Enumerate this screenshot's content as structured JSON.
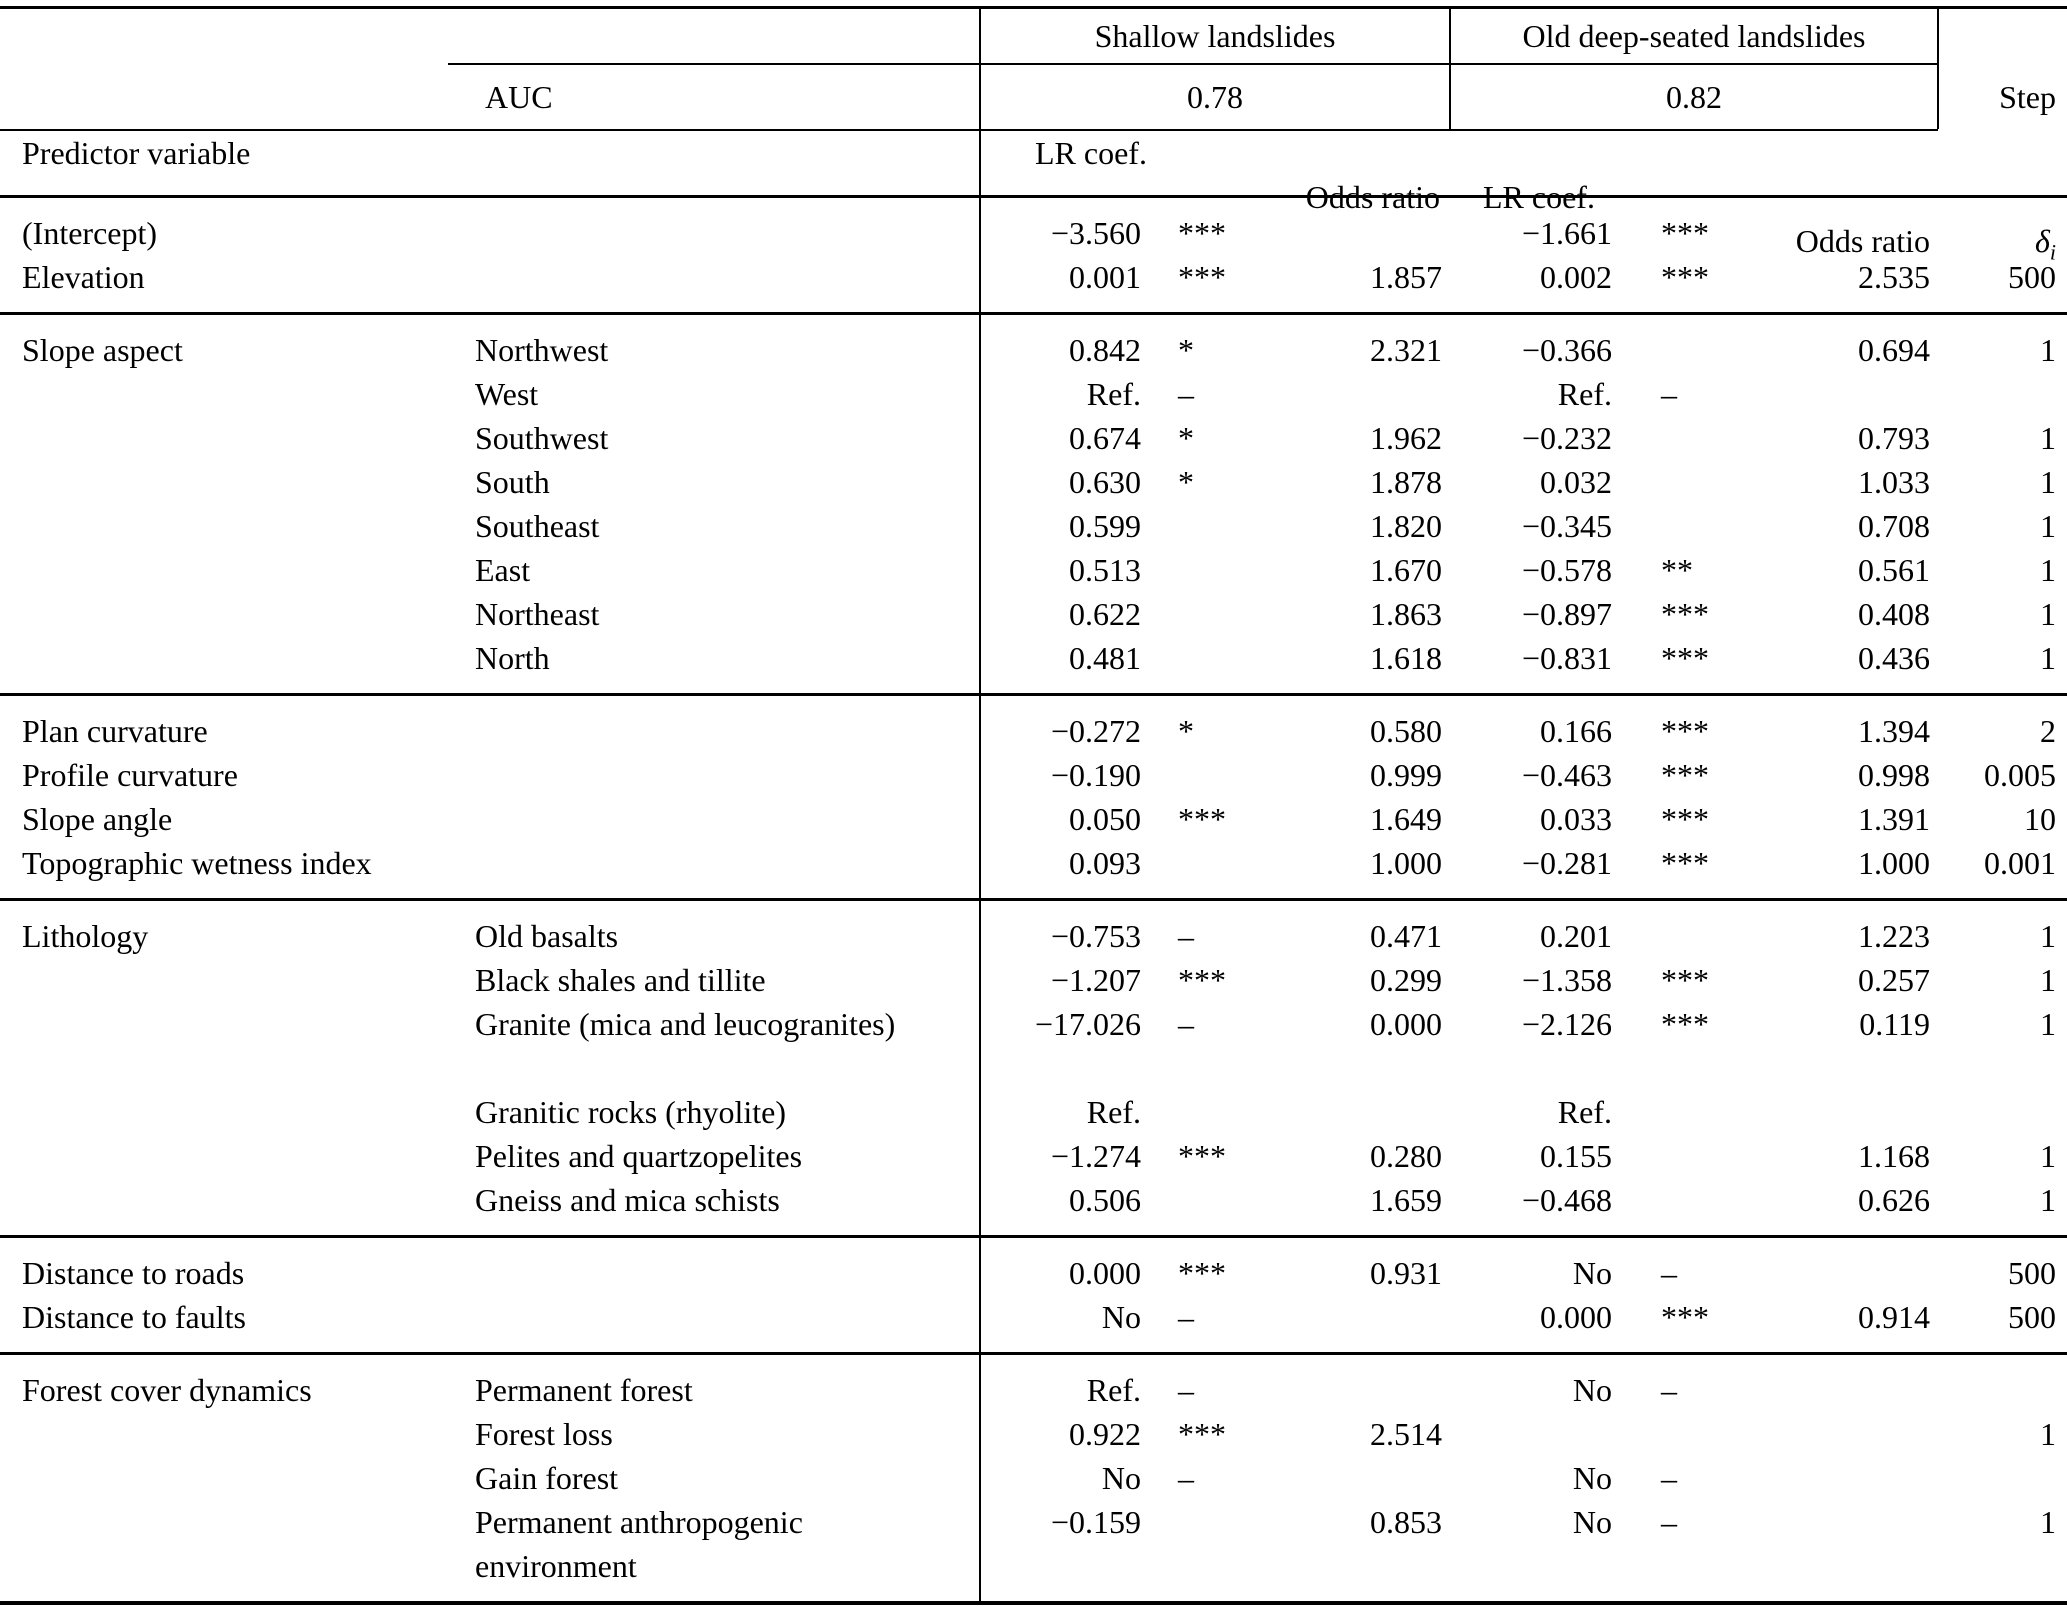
{
  "table": {
    "header": {
      "group_shallow": "Shallow landslides",
      "group_deep": "Old deep-seated landslides",
      "auc_label": "AUC",
      "auc_shallow": "0.78",
      "auc_deep": "0.82",
      "step_label": "Step",
      "predictor_label": "Predictor variable",
      "lr_coef_shallow": "LR coef.",
      "odds_ratio_shallow": "Odds ratio",
      "lr_coef_deep": "LR coef.",
      "odds_ratio_deep": "Odds ratio",
      "delta_symbol": "δ",
      "delta_subscript": "i"
    },
    "sections": [
      {
        "name": "intercept-elevation",
        "rows": [
          {
            "predictor": "(Intercept)",
            "category": "",
            "lr1": "−3.560",
            "sig1": "***",
            "odds1": "",
            "lr2": "−1.661",
            "sig2": "***",
            "odds2": "",
            "step": ""
          },
          {
            "predictor": "Elevation",
            "category": "",
            "lr1": "0.001",
            "sig1": "***",
            "odds1": "1.857",
            "lr2": "0.002",
            "sig2": "***",
            "odds2": "2.535",
            "step": "500"
          }
        ]
      },
      {
        "name": "slope-aspect",
        "rows": [
          {
            "predictor": "Slope aspect",
            "category": "Northwest",
            "lr1": "0.842",
            "sig1": "*",
            "odds1": "2.321",
            "lr2": "−0.366",
            "sig2": "",
            "odds2": "0.694",
            "step": "1"
          },
          {
            "predictor": "",
            "category": "West",
            "lr1": "Ref.",
            "sig1": "–",
            "odds1": "",
            "lr2": "Ref.",
            "sig2": "–",
            "odds2": "",
            "step": ""
          },
          {
            "predictor": "",
            "category": "Southwest",
            "lr1": "0.674",
            "sig1": "*",
            "odds1": "1.962",
            "lr2": "−0.232",
            "sig2": "",
            "odds2": "0.793",
            "step": "1"
          },
          {
            "predictor": "",
            "category": "South",
            "lr1": "0.630",
            "sig1": "*",
            "odds1": "1.878",
            "lr2": "0.032",
            "sig2": "",
            "odds2": "1.033",
            "step": "1"
          },
          {
            "predictor": "",
            "category": "Southeast",
            "lr1": "0.599",
            "sig1": "",
            "odds1": "1.820",
            "lr2": "−0.345",
            "sig2": "",
            "odds2": "0.708",
            "step": "1"
          },
          {
            "predictor": "",
            "category": "East",
            "lr1": "0.513",
            "sig1": "",
            "odds1": "1.670",
            "lr2": "−0.578",
            "sig2": "**",
            "odds2": "0.561",
            "step": "1"
          },
          {
            "predictor": "",
            "category": "Northeast",
            "lr1": "0.622",
            "sig1": "",
            "odds1": "1.863",
            "lr2": "−0.897",
            "sig2": "***",
            "odds2": "0.408",
            "step": "1"
          },
          {
            "predictor": "",
            "category": "North",
            "lr1": "0.481",
            "sig1": "",
            "odds1": "1.618",
            "lr2": "−0.831",
            "sig2": "***",
            "odds2": "0.436",
            "step": "1"
          }
        ]
      },
      {
        "name": "terrain-indices",
        "rows": [
          {
            "predictor": "Plan curvature",
            "category": "",
            "lr1": "−0.272",
            "sig1": "*",
            "odds1": "0.580",
            "lr2": "0.166",
            "sig2": "***",
            "odds2": "1.394",
            "step": "2"
          },
          {
            "predictor": "Profile curvature",
            "category": "",
            "lr1": "−0.190",
            "sig1": "",
            "odds1": "0.999",
            "lr2": "−0.463",
            "sig2": "***",
            "odds2": "0.998",
            "step": "0.005"
          },
          {
            "predictor": "Slope angle",
            "category": "",
            "lr1": "0.050",
            "sig1": "***",
            "odds1": "1.649",
            "lr2": "0.033",
            "sig2": "***",
            "odds2": "1.391",
            "step": "10"
          },
          {
            "predictor": "Topographic wetness index",
            "category": "",
            "lr1": "0.093",
            "sig1": "",
            "odds1": "1.000",
            "lr2": "−0.281",
            "sig2": "***",
            "odds2": "1.000",
            "step": "0.001"
          }
        ]
      },
      {
        "name": "lithology",
        "rows": [
          {
            "predictor": "Lithology",
            "category": "Old basalts",
            "lr1": "−0.753",
            "sig1": "–",
            "odds1": "0.471",
            "lr2": "0.201",
            "sig2": "",
            "odds2": "1.223",
            "step": "1"
          },
          {
            "predictor": "",
            "category": "Black shales and tillite",
            "lr1": "−1.207",
            "sig1": "***",
            "odds1": "0.299",
            "lr2": "−1.358",
            "sig2": "***",
            "odds2": "0.257",
            "step": "1"
          },
          {
            "predictor": "",
            "category": "Granite (mica and leucogranites)",
            "lr1": "−17.026",
            "sig1": "–",
            "odds1": "0.000",
            "lr2": "−2.126",
            "sig2": "***",
            "odds2": "0.119",
            "step": "1"
          },
          {
            "predictor": "",
            "category": "",
            "lr1": "",
            "sig1": "",
            "odds1": "",
            "lr2": "",
            "sig2": "",
            "odds2": "",
            "step": ""
          },
          {
            "predictor": "",
            "category": "Granitic rocks (rhyolite)",
            "lr1": "Ref.",
            "sig1": "",
            "odds1": "",
            "lr2": "Ref.",
            "sig2": "",
            "odds2": "",
            "step": ""
          },
          {
            "predictor": "",
            "category": "Pelites and quartzopelites",
            "lr1": "−1.274",
            "sig1": "***",
            "odds1": "0.280",
            "lr2": "0.155",
            "sig2": "",
            "odds2": "1.168",
            "step": "1"
          },
          {
            "predictor": "",
            "category": "Gneiss and mica schists",
            "lr1": "0.506",
            "sig1": "",
            "odds1": "1.659",
            "lr2": "−0.468",
            "sig2": "",
            "odds2": "0.626",
            "step": "1"
          }
        ]
      },
      {
        "name": "distances",
        "rows": [
          {
            "predictor": "Distance to roads",
            "category": "",
            "lr1": "0.000",
            "sig1": "***",
            "odds1": "0.931",
            "lr2": "No",
            "sig2": "–",
            "odds2": "",
            "step": "500"
          },
          {
            "predictor": "Distance to faults",
            "category": "",
            "lr1": "No",
            "sig1": "–",
            "odds1": "",
            "lr2": "0.000",
            "sig2": "***",
            "odds2": "0.914",
            "step": "500"
          }
        ]
      },
      {
        "name": "forest-cover-dynamics",
        "rows": [
          {
            "predictor": "Forest cover dynamics",
            "category": "Permanent forest",
            "lr1": "Ref.",
            "sig1": "–",
            "odds1": "",
            "lr2": "No",
            "sig2": "–",
            "odds2": "",
            "step": ""
          },
          {
            "predictor": "",
            "category": "Forest loss",
            "lr1": "0.922",
            "sig1": "***",
            "odds1": "2.514",
            "lr2": "",
            "sig2": "",
            "odds2": "",
            "step": "1"
          },
          {
            "predictor": "",
            "category": "Gain forest",
            "lr1": "No",
            "sig1": "–",
            "odds1": "",
            "lr2": "No",
            "sig2": "–",
            "odds2": "",
            "step": ""
          },
          {
            "predictor": "",
            "category": "Permanent anthropogenic\nenvironment",
            "lr1": "−0.159",
            "sig1": "",
            "odds1": "0.853",
            "lr2": "No",
            "sig2": "–",
            "odds2": "",
            "step": "1"
          }
        ]
      }
    ]
  }
}
